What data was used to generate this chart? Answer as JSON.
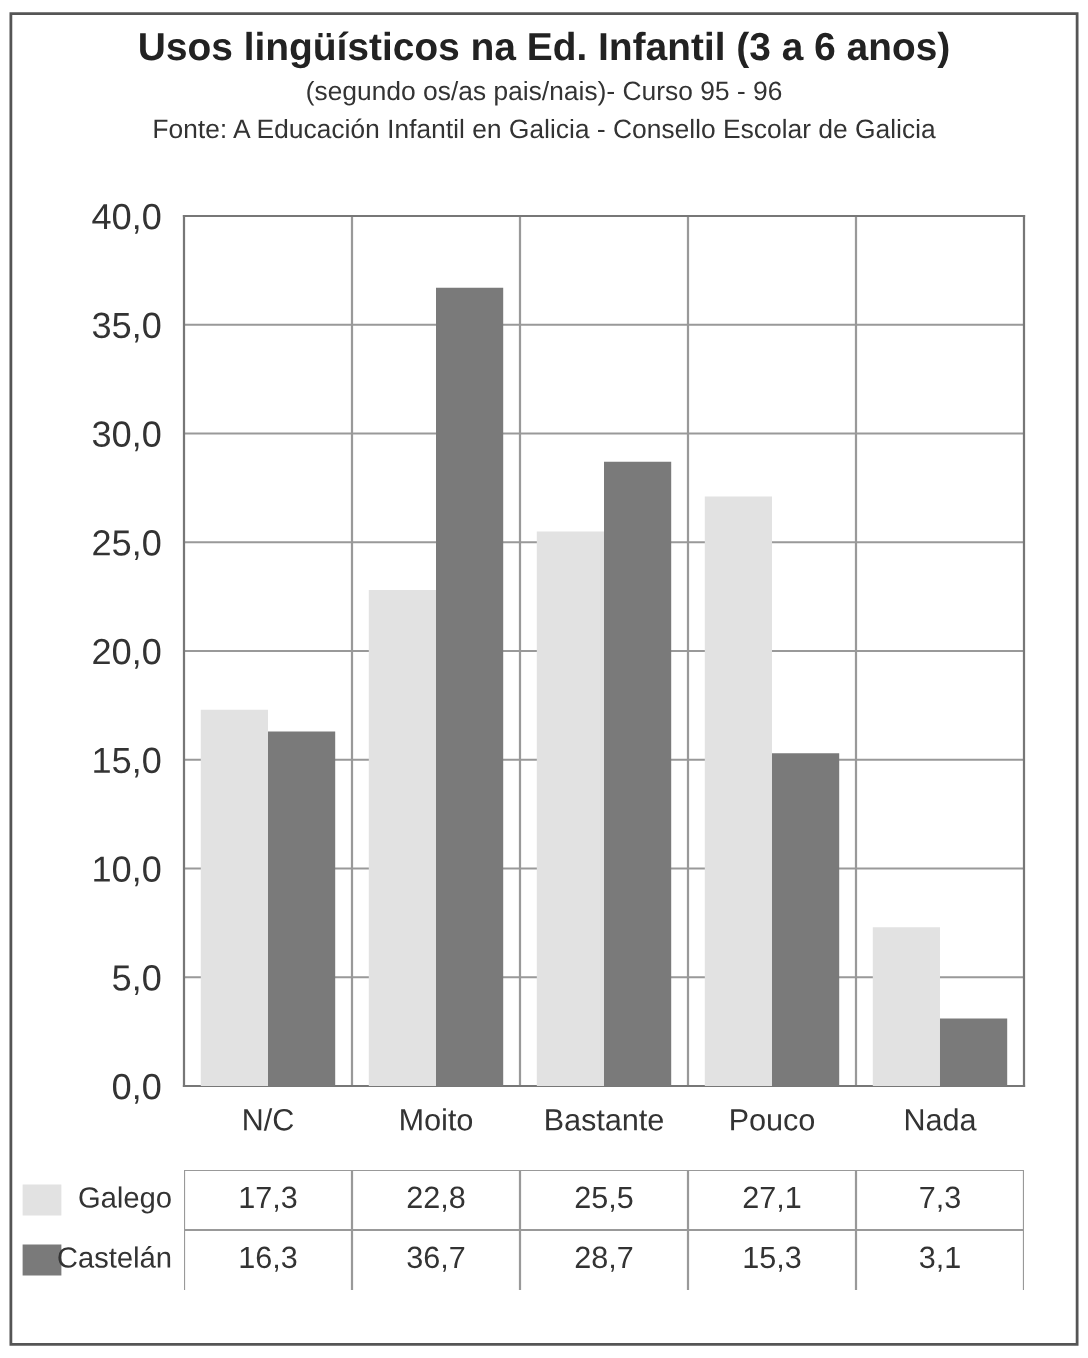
{
  "chart_data": {
    "type": "bar",
    "title": "Usos lingüísticos na Ed. Infantil (3 a 6 anos)",
    "subtitle": "(segundo os/as pais/nais)- Curso 95 - 96",
    "annotations": [
      "Fonte: A Educación Infantil en Galicia - Consello Escolar de Galicia"
    ],
    "categories": [
      "N/C",
      "Moito",
      "Bastante",
      "Pouco",
      "Nada"
    ],
    "series": [
      {
        "name": "Galego",
        "color": "#e2e2e2",
        "values": [
          17.3,
          22.8,
          25.5,
          27.1,
          7.3
        ],
        "value_labels": [
          "17,3",
          "22,8",
          "25,5",
          "27,1",
          "7,3"
        ]
      },
      {
        "name": "Castelán",
        "color": "#7a7a7a",
        "values": [
          16.3,
          36.7,
          28.7,
          15.3,
          3.1
        ],
        "value_labels": [
          "16,3",
          "36,7",
          "28,7",
          "15,3",
          "3,1"
        ]
      }
    ],
    "ylim": [
      0,
      40
    ],
    "yticks": [
      {
        "value": 0,
        "label": "0,0"
      },
      {
        "value": 5,
        "label": "5,0"
      },
      {
        "value": 10,
        "label": "10,0"
      },
      {
        "value": 15,
        "label": "15,0"
      },
      {
        "value": 20,
        "label": "20,0"
      },
      {
        "value": 25,
        "label": "25,0"
      },
      {
        "value": 30,
        "label": "30,0"
      },
      {
        "value": 35,
        "label": "35,0"
      },
      {
        "value": 40,
        "label": "40,0"
      }
    ],
    "grid": true,
    "legend": "bottom left"
  }
}
